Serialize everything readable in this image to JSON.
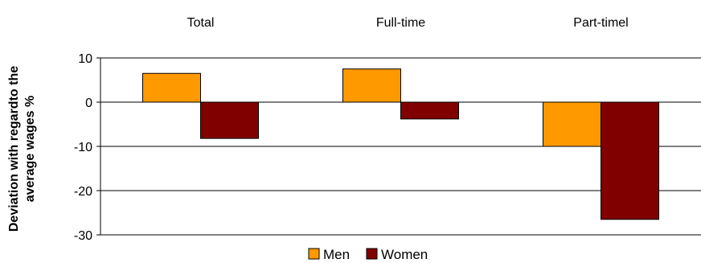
{
  "chart_data": {
    "type": "bar",
    "categories": [
      "Total",
      "Full-time",
      "Part-timel"
    ],
    "series": [
      {
        "name": "Men",
        "values": [
          6.5,
          7.5,
          -10
        ],
        "color": "#FF9900"
      },
      {
        "name": "Women",
        "values": [
          -8.2,
          -3.8,
          -26.5
        ],
        "color": "#800000"
      }
    ],
    "ylabel_lines": [
      "Deviation with regardto the",
      "average wages %"
    ],
    "ylim": [
      -30,
      10
    ],
    "yticks": [
      10,
      0,
      -10,
      -20,
      -30
    ],
    "grid": true,
    "legend": "bottom"
  }
}
